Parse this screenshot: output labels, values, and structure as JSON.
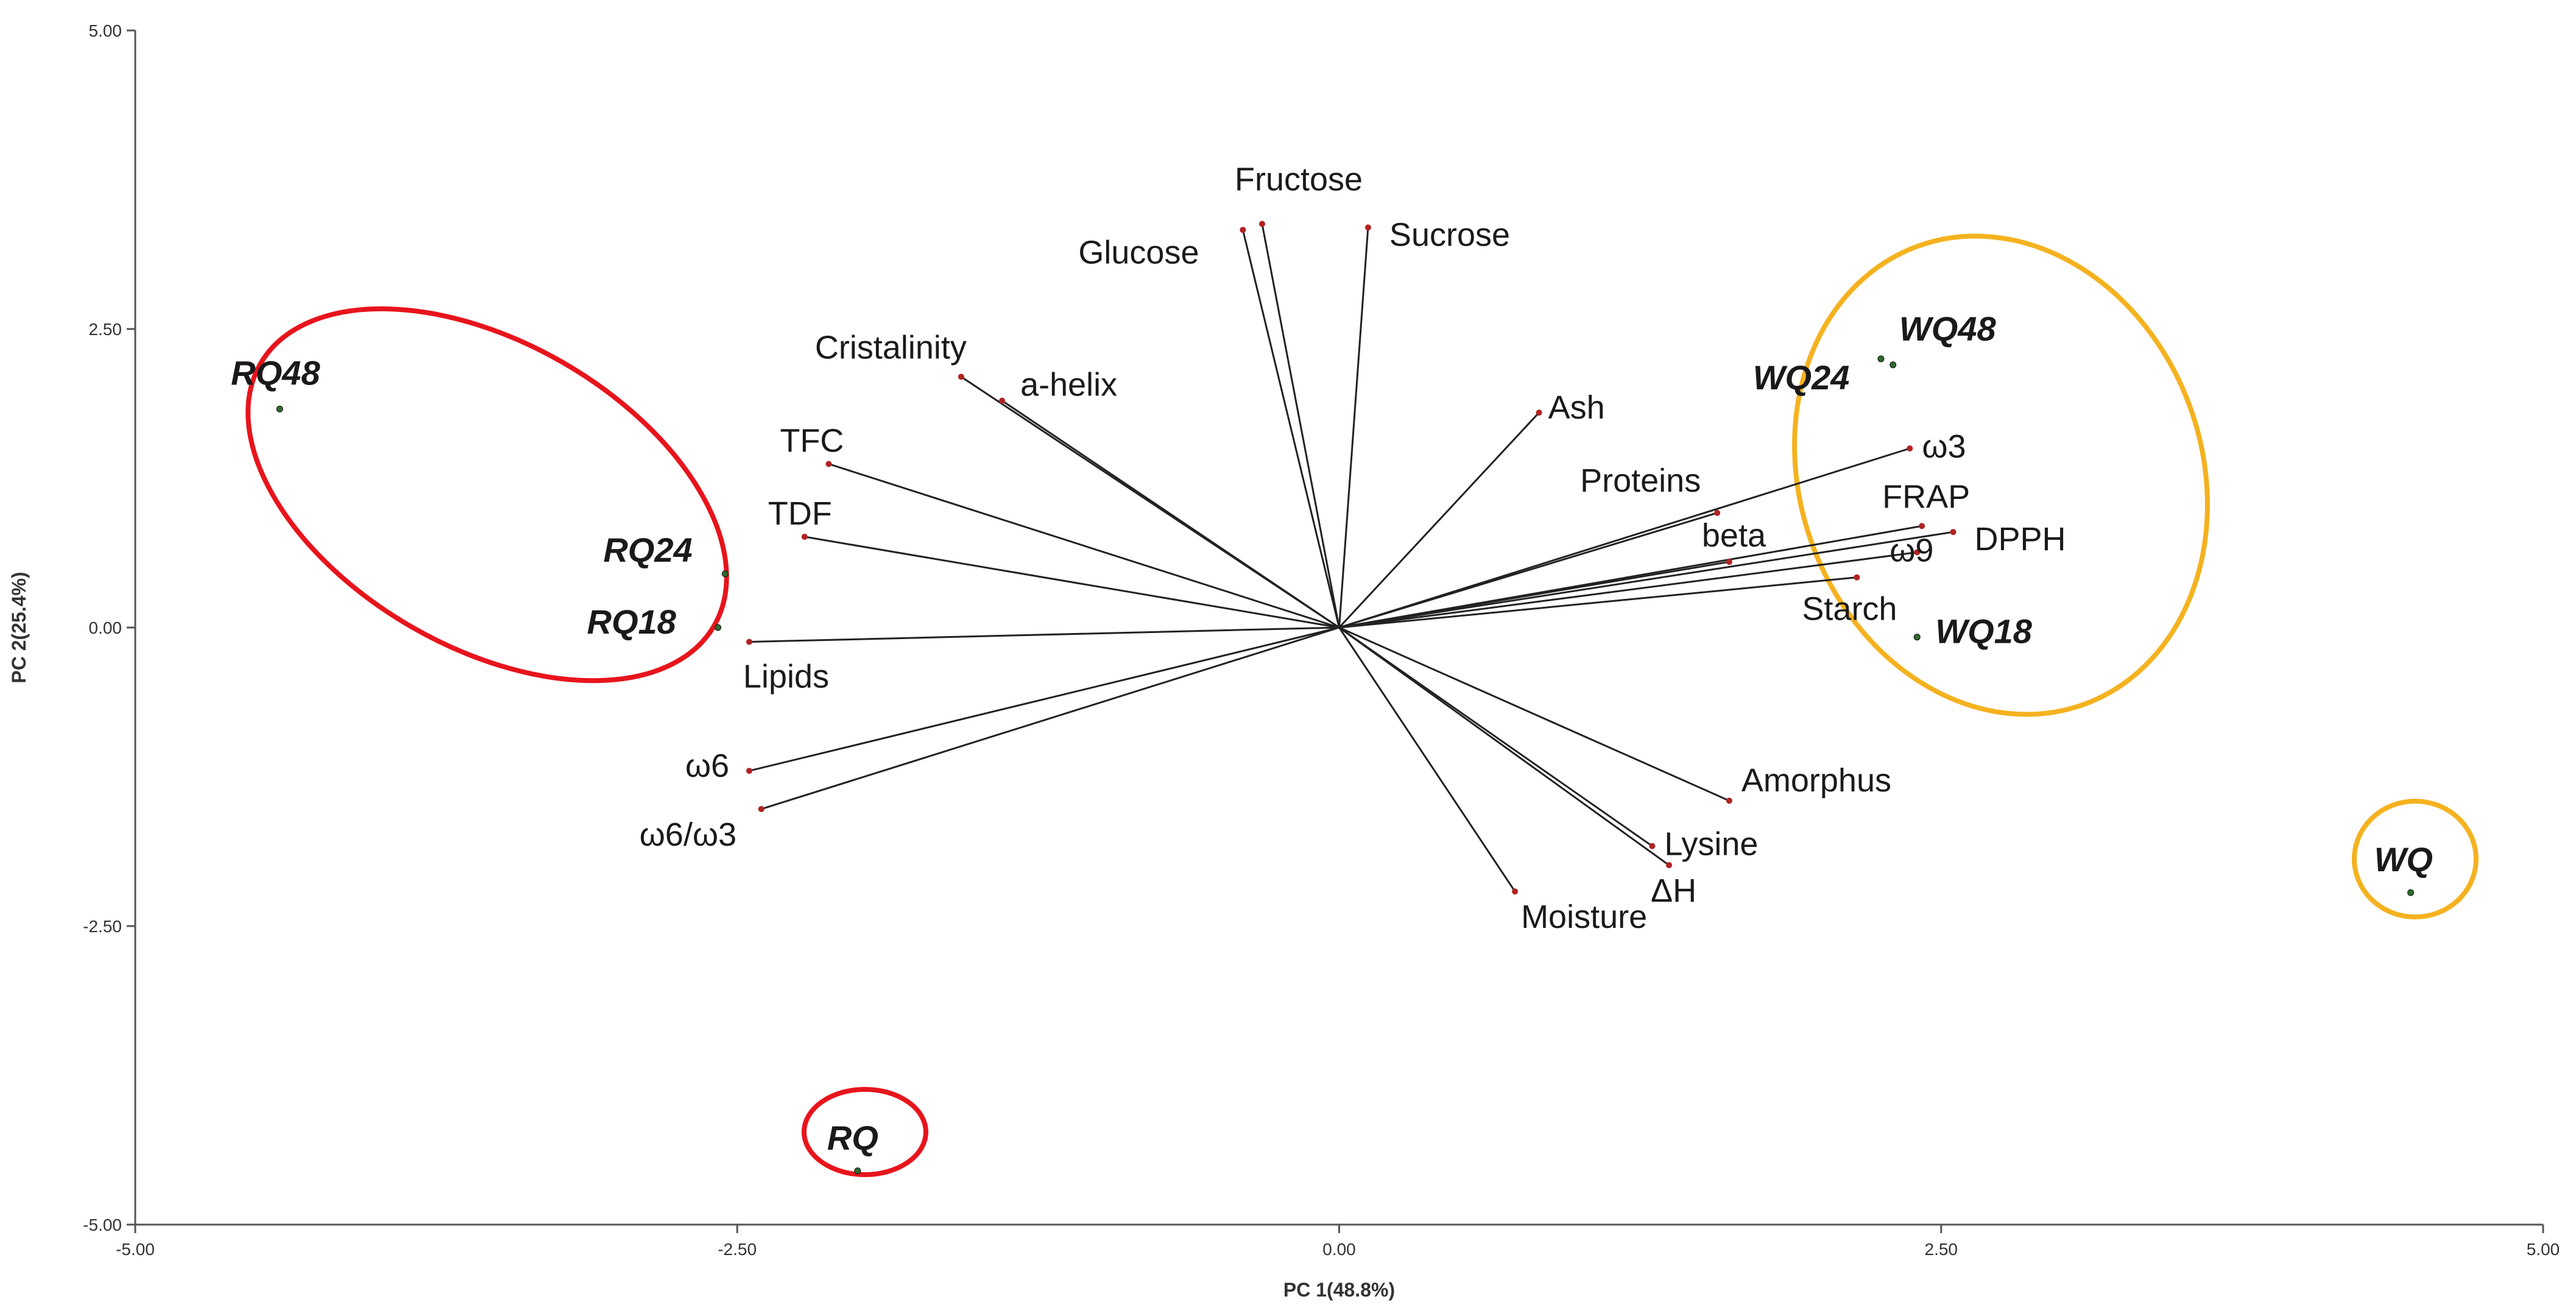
{
  "chart_data": {
    "type": "scatter",
    "subtype": "pca-biplot",
    "xlabel": "PC 1(48.8%)",
    "ylabel": "PC 2(25.4%)",
    "xlim": [
      -5,
      5
    ],
    "ylim": [
      -5,
      5
    ],
    "x_ticks": [
      "-5.00",
      "-2.50",
      "0.00",
      "2.50",
      "5.00"
    ],
    "y_ticks": [
      "5.00",
      "2.50",
      "0.00",
      "-2.50",
      "-5.00"
    ],
    "grid": false,
    "colors": {
      "axis": "#555555",
      "vector": "#222222",
      "vector_tip": "#b22222",
      "red_group": "#e8141c",
      "orange_group": "#f5b21f"
    },
    "variables": [
      {
        "name": "Fructose",
        "x": -0.32,
        "y": 3.38
      },
      {
        "name": "Glucose",
        "x": -0.4,
        "y": 3.33
      },
      {
        "name": "Sucrose",
        "x": 0.12,
        "y": 3.35
      },
      {
        "name": "Cristalinity",
        "x": -1.57,
        "y": 2.1
      },
      {
        "name": "a-helix",
        "x": -1.4,
        "y": 1.9
      },
      {
        "name": "TFC",
        "x": -2.12,
        "y": 1.37
      },
      {
        "name": "TDF",
        "x": -2.22,
        "y": 0.76
      },
      {
        "name": "Lipids",
        "x": -2.45,
        "y": -0.12
      },
      {
        "name": "ω6",
        "x": -2.45,
        "y": -1.2
      },
      {
        "name": "ω6/ω3",
        "x": -2.4,
        "y": -1.52
      },
      {
        "name": "Ash",
        "x": 0.83,
        "y": 1.8
      },
      {
        "name": "Proteins",
        "x": 1.57,
        "y": 0.96
      },
      {
        "name": "ω3",
        "x": 2.37,
        "y": 1.5
      },
      {
        "name": "FRAP",
        "x": 2.42,
        "y": 0.85
      },
      {
        "name": "DPPH",
        "x": 2.55,
        "y": 0.8
      },
      {
        "name": "beta",
        "x": 1.62,
        "y": 0.55
      },
      {
        "name": "ω9",
        "x": 2.4,
        "y": 0.63
      },
      {
        "name": "Starch",
        "x": 2.15,
        "y": 0.42
      },
      {
        "name": "Amorphus",
        "x": 1.62,
        "y": -1.45
      },
      {
        "name": "Lysine",
        "x": 1.3,
        "y": -1.83
      },
      {
        "name": "ΔH",
        "x": 1.37,
        "y": -1.99
      },
      {
        "name": "Moisture",
        "x": 0.73,
        "y": -2.21
      }
    ],
    "observations": [
      {
        "name": "RQ48",
        "x": -4.4,
        "y": 1.83,
        "group": "red"
      },
      {
        "name": "RQ24",
        "x": -2.55,
        "y": 0.45,
        "group": "red"
      },
      {
        "name": "RQ18",
        "x": -2.58,
        "y": 0.0,
        "group": "red"
      },
      {
        "name": "RQ",
        "x": -2.0,
        "y": -4.55,
        "group": "red"
      },
      {
        "name": "WQ48",
        "x": 2.25,
        "y": 2.25,
        "group": "orange"
      },
      {
        "name": "WQ24",
        "x": 2.3,
        "y": 2.2,
        "group": "orange"
      },
      {
        "name": "WQ18",
        "x": 2.4,
        "y": -0.08,
        "group": "orange"
      },
      {
        "name": "WQ",
        "x": 4.45,
        "y": -2.22,
        "group": "orange"
      }
    ]
  }
}
